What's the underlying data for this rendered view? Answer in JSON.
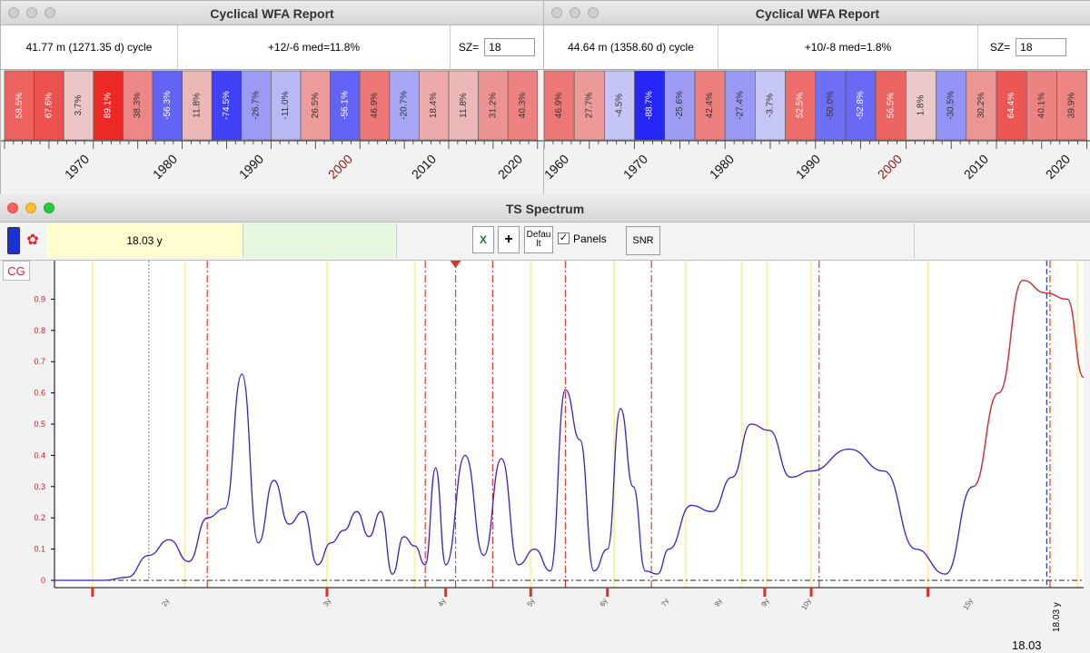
{
  "wfa_left": {
    "title": "Cyclical WFA Report",
    "cycle": "41.77 m (1271.35 d) cycle",
    "stats": "+12/-6 med=11.8%",
    "sz_label": "SZ=",
    "sz_value": "18",
    "cells": [
      "58.5%",
      "67.6%",
      "3.7%",
      "89.1%",
      "38.3%",
      "-56.3%",
      "11.8%",
      "-74.5%",
      "-26.7%",
      "-11.0%",
      "26.5%",
      "-56.1%",
      "46.9%",
      "-20.7%",
      "18.4%",
      "11.8%",
      "31.2%",
      "40.3%"
    ],
    "years": [
      "1970",
      "1980",
      "1990",
      "2000",
      "2010",
      "2020"
    ]
  },
  "wfa_right": {
    "title": "Cyclical WFA Report",
    "cycle": "44.64 m (1358.60 d) cycle",
    "stats": "+10/-8 med=1.8%",
    "sz_label": "SZ=",
    "sz_value": "18",
    "cells": [
      "46.9%",
      "27.7%",
      "-4.5%",
      "-88.7%",
      "-25.6%",
      "42.4%",
      "-27.4%",
      "-3.7%",
      "52.5%",
      "-50.0%",
      "-52.8%",
      "56.5%",
      "1.8%",
      "-30.5%",
      "30.2%",
      "64.4%",
      "40.1%",
      "39.9%"
    ],
    "years": [
      "1960",
      "1970",
      "1980",
      "1990",
      "2000",
      "2010",
      "2020"
    ]
  },
  "spectrum": {
    "title": "TS Spectrum",
    "period_field": "18.03 y",
    "excel_label": "X",
    "plus_label": "+",
    "default_label": "Default",
    "panels_label": "Panels",
    "panels_checked": true,
    "snr_label": "SNR",
    "cg_label": "CG",
    "readout": "18.03",
    "cursor_label": "18.03 y",
    "colors": {
      "curve": "#3a1fc8",
      "curve_end": "#e0302a",
      "yellow": "#fff0a0",
      "red": "#e0302a"
    }
  },
  "chart_data": {
    "type": "line",
    "title": "",
    "xlabel": "",
    "ylabel": "",
    "ylim": [
      0,
      1.0
    ],
    "y_ticks": [
      0,
      0.1,
      0.2,
      0.3,
      0.4,
      0.5,
      0.6,
      0.7,
      0.8,
      0.9
    ],
    "x_tick_labels": [
      "2y",
      "3y",
      "4y",
      "5y",
      "6y",
      "7y",
      "8y",
      "9y",
      "10y",
      "15y"
    ],
    "x": [
      1.5,
      1.7,
      1.8,
      1.9,
      2.0,
      2.1,
      2.2,
      2.3,
      2.4,
      2.5,
      2.6,
      2.7,
      2.8,
      2.9,
      3.0,
      3.1,
      3.2,
      3.3,
      3.4,
      3.5,
      3.6,
      3.7,
      3.8,
      3.9,
      4.0,
      4.2,
      4.4,
      4.6,
      4.8,
      5.0,
      5.2,
      5.4,
      5.6,
      5.8,
      6.0,
      6.2,
      6.4,
      6.6,
      6.8,
      7.0,
      7.4,
      7.8,
      8.2,
      8.6,
      9.0,
      9.5,
      10.0,
      11.0,
      12.0,
      13.0,
      14.0,
      15.0,
      16.0,
      17.0,
      18.0,
      19.0,
      19.8
    ],
    "values": [
      0,
      0,
      0.01,
      0.08,
      0.13,
      0.06,
      0.2,
      0.23,
      0.66,
      0.12,
      0.32,
      0.18,
      0.22,
      0.05,
      0.12,
      0.16,
      0.22,
      0.14,
      0.22,
      0.02,
      0.14,
      0.11,
      0.05,
      0.36,
      0.05,
      0.4,
      0.08,
      0.39,
      0.05,
      0.1,
      0.03,
      0.61,
      0.45,
      0.03,
      0.1,
      0.55,
      0.3,
      0.03,
      0.02,
      0.1,
      0.24,
      0.22,
      0.33,
      0.5,
      0.48,
      0.33,
      0.35,
      0.42,
      0.35,
      0.1,
      0.02,
      0.3,
      0.6,
      0.96,
      0.92,
      0.9,
      0.65
    ]
  }
}
